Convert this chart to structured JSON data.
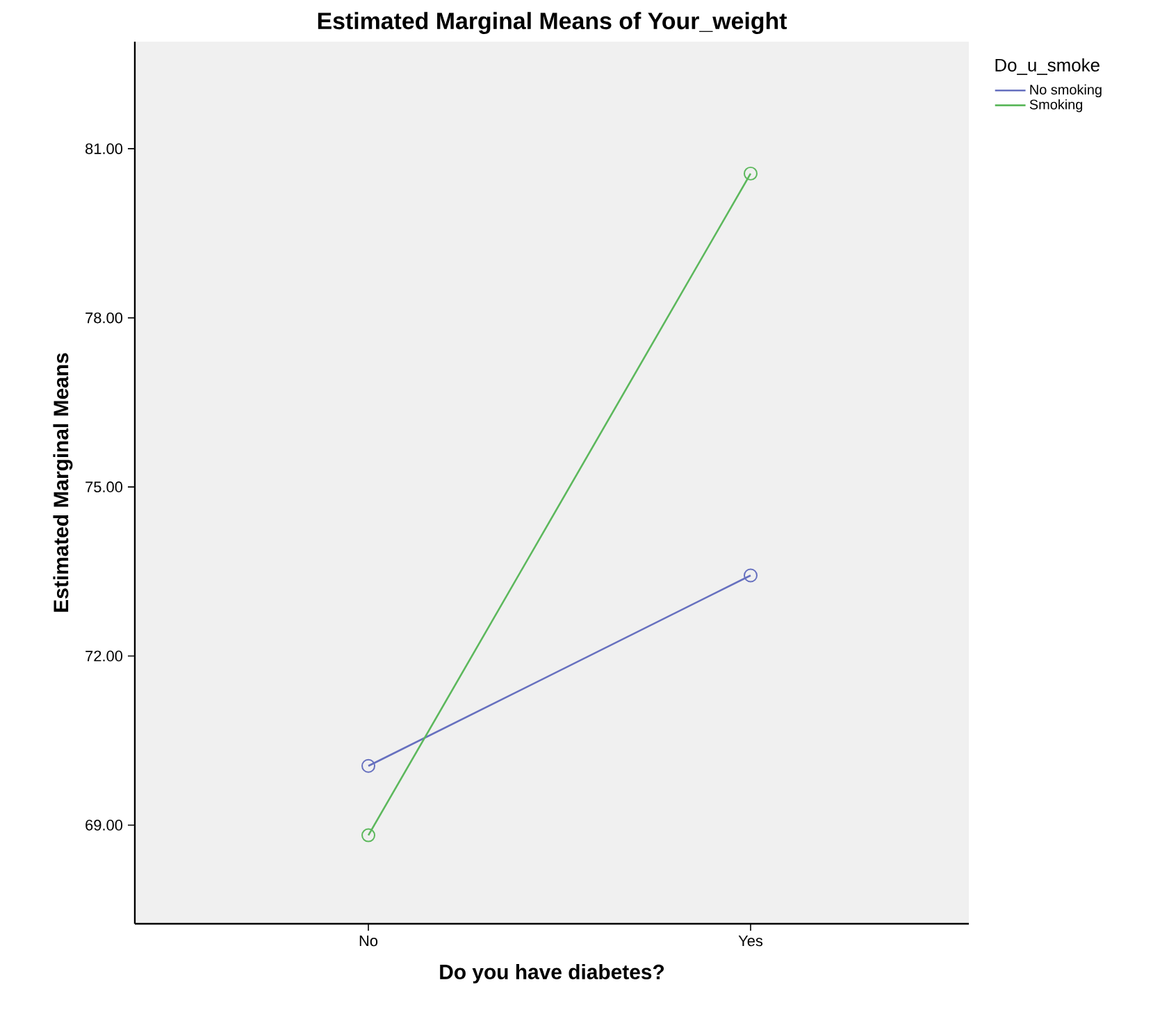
{
  "chart_data": {
    "type": "line",
    "title": "Estimated Marginal Means of Your_weight",
    "xlabel": "Do you have diabetes?",
    "ylabel": "Estimated Marginal Means",
    "legend_title": "Do_u_smoke",
    "categories": [
      "No",
      "Yes"
    ],
    "series": [
      {
        "name": "No smoking",
        "color": "#6670bf",
        "values": [
          70.05,
          73.43
        ]
      },
      {
        "name": "Smoking",
        "color": "#5cb85c",
        "values": [
          68.82,
          80.56
        ]
      }
    ],
    "ylim": [
      67.25,
      82.9
    ],
    "yticks": [
      {
        "value": 69,
        "label": "69.00"
      },
      {
        "value": 72,
        "label": "72.00"
      },
      {
        "value": 75,
        "label": "75.00"
      },
      {
        "value": 78,
        "label": "78.00"
      },
      {
        "value": 81,
        "label": "81.00"
      }
    ],
    "grid": false,
    "legend": "top right",
    "marker": "circle",
    "line_style": "solid"
  }
}
